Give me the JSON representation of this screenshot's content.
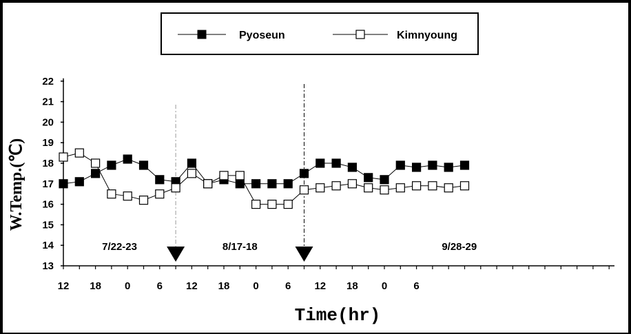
{
  "chart_data": {
    "type": "line",
    "xlabel": "Time(hr)",
    "ylabel": "W.Temp.(℃)",
    "ylim": [
      13,
      22
    ],
    "yticks": [
      "13",
      "14",
      "15",
      "16",
      "17",
      "18",
      "19",
      "20",
      "21",
      "22"
    ],
    "xticks": [
      "12",
      "18",
      "0",
      "6",
      "12",
      "18",
      "0",
      "6",
      "12",
      "18",
      "0",
      "6"
    ],
    "x_hours": [
      12,
      15,
      18,
      21,
      24,
      27,
      30,
      33,
      36,
      39,
      42,
      45,
      48,
      51,
      54,
      57,
      60,
      63,
      66,
      69,
      72,
      75,
      78,
      81,
      84,
      87
    ],
    "series": [
      {
        "name": "Pyoseun",
        "marker": "filled-square",
        "values": [
          17.0,
          17.1,
          17.5,
          17.9,
          18.2,
          17.9,
          17.2,
          17.1,
          18.0,
          17.0,
          17.2,
          17.0,
          17.0,
          17.0,
          17.0,
          17.5,
          18.0,
          18.0,
          17.8,
          17.3,
          17.2,
          17.9,
          17.8,
          17.9,
          17.8,
          17.9
        ]
      },
      {
        "name": "Kimnyoung",
        "marker": "open-square",
        "values": [
          18.3,
          18.5,
          18.0,
          16.5,
          16.4,
          16.2,
          16.5,
          16.8,
          17.5,
          17.0,
          17.4,
          17.4,
          16.0,
          16.0,
          16.0,
          16.7,
          16.8,
          16.9,
          17.0,
          16.8,
          16.7,
          16.8,
          16.9,
          16.9,
          16.8,
          16.9
        ]
      }
    ],
    "period_labels": [
      "7/22-23",
      "8/17-18",
      "9/28-29"
    ],
    "legend_position": "top-center",
    "grid": false,
    "colors": {
      "line": "#000000",
      "divider": "#999999"
    }
  }
}
